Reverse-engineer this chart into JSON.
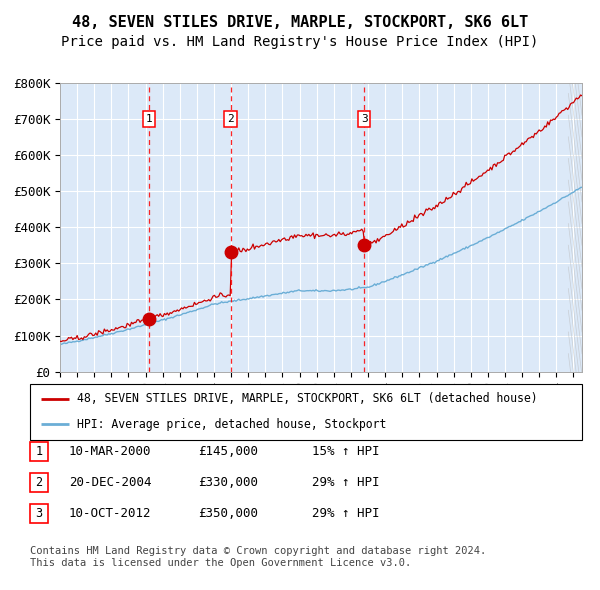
{
  "title": "48, SEVEN STILES DRIVE, MARPLE, STOCKPORT, SK6 6LT",
  "subtitle": "Price paid vs. HM Land Registry's House Price Index (HPI)",
  "ylim": [
    0,
    800000
  ],
  "yticks": [
    0,
    100000,
    200000,
    300000,
    400000,
    500000,
    600000,
    700000,
    800000
  ],
  "ytick_labels": [
    "£0",
    "£100K",
    "£200K",
    "£300K",
    "£400K",
    "£500K",
    "£600K",
    "£700K",
    "£800K"
  ],
  "xlim_start": 1995.0,
  "xlim_end": 2025.5,
  "background_color": "#dce9f8",
  "grid_color": "#ffffff",
  "sale_dates": [
    2000.19,
    2004.97,
    2012.78
  ],
  "sale_prices": [
    145000,
    330000,
    350000
  ],
  "sale_labels": [
    "1",
    "2",
    "3"
  ],
  "vline_color": "#ff0000",
  "marker_color": "#cc0000",
  "hpi_line_color": "#6baed6",
  "price_line_color": "#cc0000",
  "legend_entries": [
    "48, SEVEN STILES DRIVE, MARPLE, STOCKPORT, SK6 6LT (detached house)",
    "HPI: Average price, detached house, Stockport"
  ],
  "table_data": [
    [
      "1",
      "10-MAR-2000",
      "£145,000",
      "15% ↑ HPI"
    ],
    [
      "2",
      "20-DEC-2004",
      "£330,000",
      "29% ↑ HPI"
    ],
    [
      "3",
      "10-OCT-2012",
      "£350,000",
      "29% ↑ HPI"
    ]
  ],
  "footnote": "Contains HM Land Registry data © Crown copyright and database right 2024.\nThis data is licensed under the Open Government Licence v3.0.",
  "title_fontsize": 11,
  "subtitle_fontsize": 10,
  "tick_fontsize": 9,
  "table_fontsize": 9,
  "footnote_fontsize": 7.5
}
